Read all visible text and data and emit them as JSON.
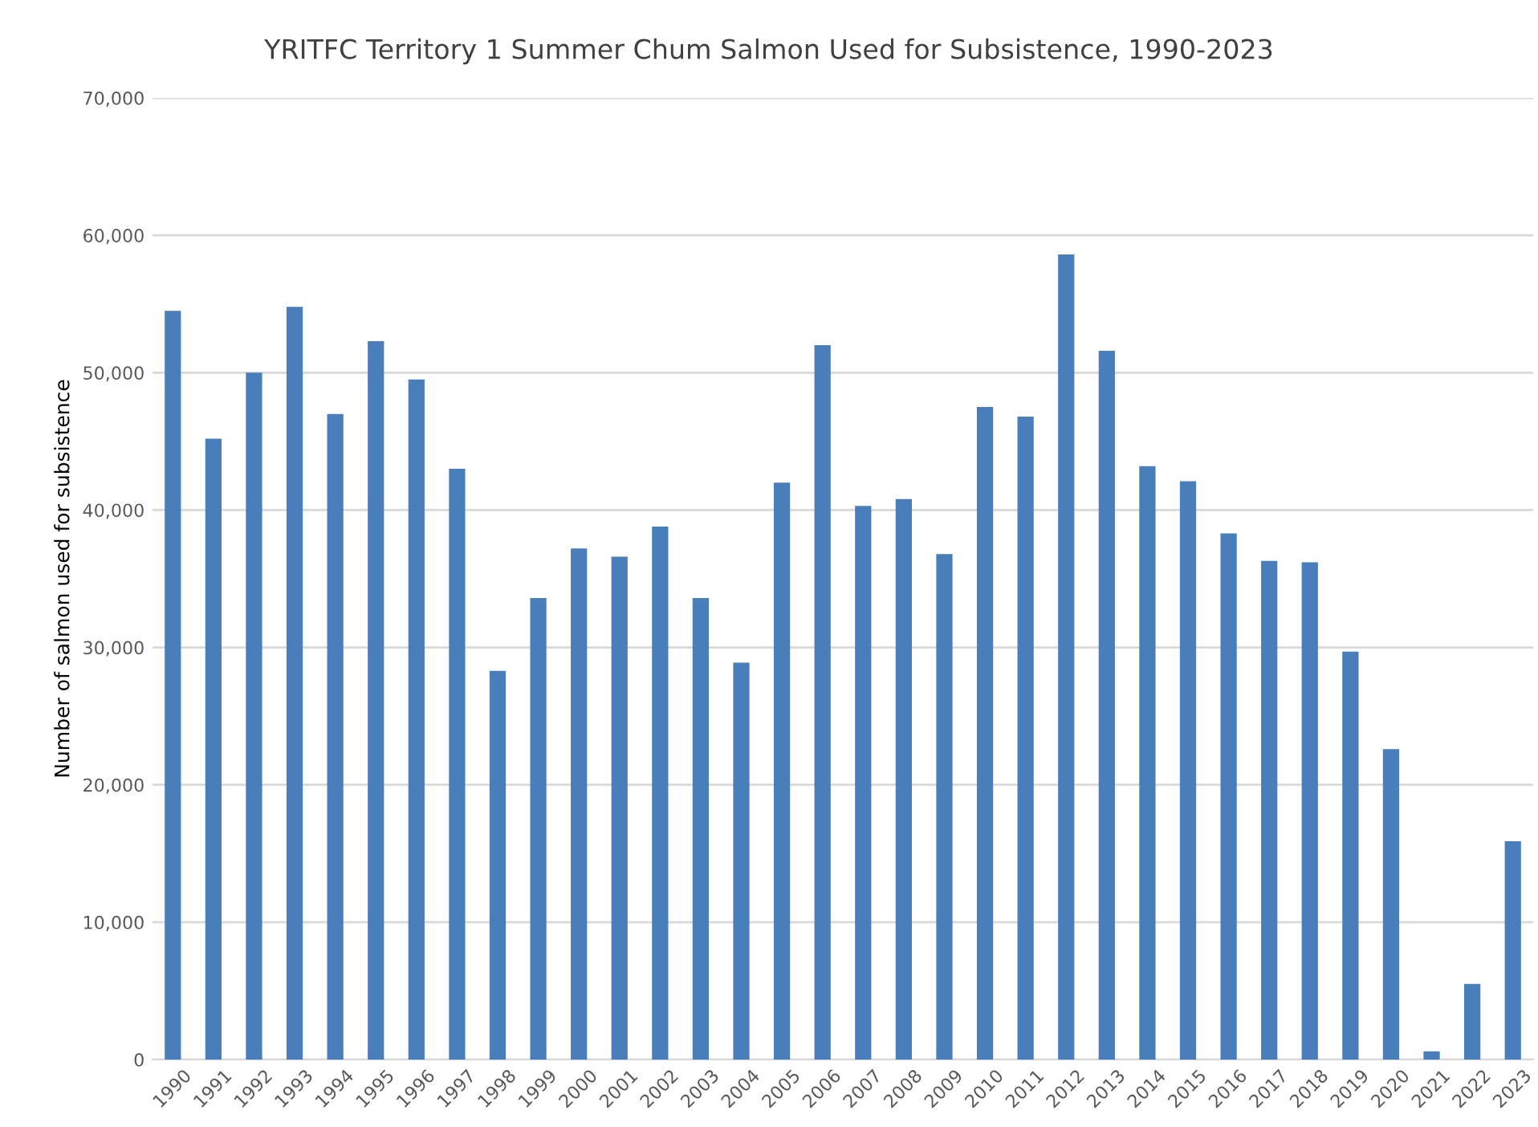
{
  "chart_data": {
    "type": "bar",
    "title": "YRITFC Territory 1 Summer Chum Salmon Used for Subsistence, 1990-2023",
    "ylabel": "Number of salmon used for subsistence",
    "categories": [
      "1990",
      "1991",
      "1992",
      "1993",
      "1994",
      "1995",
      "1996",
      "1997",
      "1998",
      "1999",
      "2000",
      "2001",
      "2002",
      "2003",
      "2004",
      "2005",
      "2006",
      "2007",
      "2008",
      "2009",
      "2010",
      "2011",
      "2012",
      "2013",
      "2014",
      "2015",
      "2016",
      "2017",
      "2018",
      "2019",
      "2020",
      "2021",
      "2022",
      "2023"
    ],
    "values": [
      54500,
      45200,
      50000,
      54800,
      47000,
      52300,
      49500,
      43000,
      28300,
      33600,
      37200,
      36600,
      38800,
      33600,
      28900,
      42000,
      52000,
      40300,
      40800,
      36800,
      47500,
      46800,
      58600,
      51600,
      43200,
      42100,
      38300,
      36300,
      36200,
      29700,
      22600,
      600,
      5500,
      15900
    ],
    "color": "#4a7ebb",
    "ylim": [
      0,
      70000
    ],
    "yticks": [
      {
        "value": 0,
        "label": "0"
      },
      {
        "value": 10000,
        "label": "10,000"
      },
      {
        "value": 20000,
        "label": "20,000"
      },
      {
        "value": 30000,
        "label": "30,000"
      },
      {
        "value": 40000,
        "label": "40,000"
      },
      {
        "value": 50000,
        "label": "50,000"
      },
      {
        "value": 60000,
        "label": "60,000"
      },
      {
        "value": 70000,
        "label": "70,000"
      }
    ],
    "grid": "y",
    "legend": false
  }
}
